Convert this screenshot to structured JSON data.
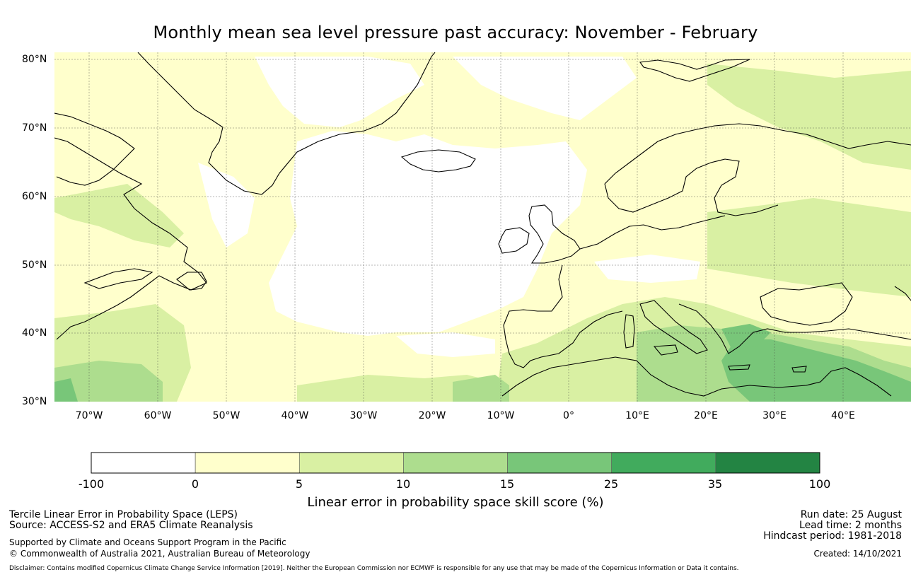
{
  "title": "Monthly mean sea level pressure past accuracy: November - February",
  "map": {
    "lat_range": [
      30,
      80.5
    ],
    "lon_range": [
      -75,
      50
    ],
    "lat_ticks": [
      "80°N",
      "70°N",
      "60°N",
      "50°N",
      "40°N",
      "30°N"
    ],
    "lon_ticks": [
      "70°W",
      "60°W",
      "50°W",
      "40°W",
      "30°W",
      "20°W",
      "10°W",
      "0°",
      "10°E",
      "20°E",
      "30°E",
      "40°E"
    ],
    "gridlines": true,
    "coastlines": true
  },
  "colorbar": {
    "label": "Linear error in probability space skill score (%)",
    "ticks": [
      "-100",
      "0",
      "5",
      "10",
      "15",
      "25",
      "35",
      "100"
    ],
    "colors": [
      "#ffffff",
      "#ffffcc",
      "#d9f0a3",
      "#addd8e",
      "#78c679",
      "#41ab5d",
      "#238443"
    ]
  },
  "footer": {
    "left_line1": "Tercile Linear Error in Probability Space (LEPS)",
    "left_line2": "Source: ACCESS-S2 and ERA5 Climate Reanalysis",
    "left_line3": "Supported by Climate and Oceans Support Program in the Pacific",
    "left_line4": "© Commonwealth of Australia 2021, Australian Bureau of Meteorology",
    "right_line1": "Run date: 25 August",
    "right_line2": "Lead time: 2 months",
    "right_line3": "Hindcast period: 1981-2018",
    "right_line4": "Created: 14/10/2021",
    "disclaimer": "Disclaimer: Contains modified Copernicus Climate Change Service Information [2019]. Neither the European Commission nor ECMWF is responsible for any use that may be made of the Copernicus Information or Data it contains."
  }
}
